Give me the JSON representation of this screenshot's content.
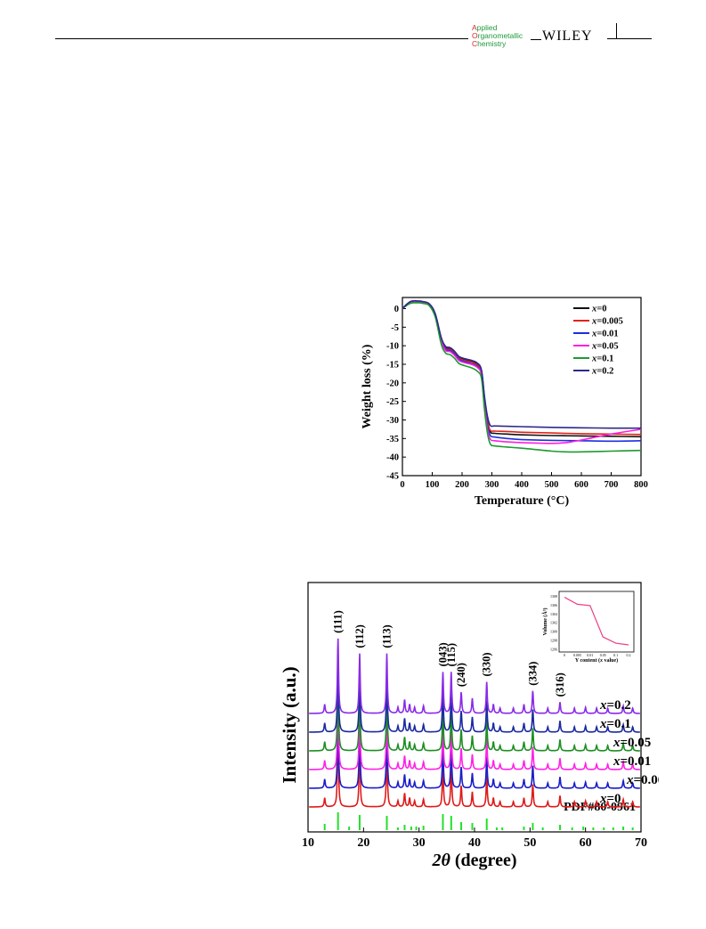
{
  "header": {
    "journal_lines": [
      {
        "cap": "A",
        "rest": "pplied"
      },
      {
        "cap": "O",
        "rest": "rganometallic"
      },
      {
        "cap": "C",
        "rest": "hemistry"
      }
    ],
    "publisher": "WILEY",
    "colors": {
      "journal_cap": "#d9262a",
      "journal_text": "#1f9a3a"
    }
  },
  "chart_data": [
    {
      "type": "line",
      "xlabel": "Temperature (°C)",
      "ylabel": "Weight loss (%)",
      "xlim": [
        0,
        800
      ],
      "ylim": [
        -45,
        3
      ],
      "xticks": [
        0,
        100,
        200,
        300,
        400,
        500,
        600,
        700,
        800
      ],
      "yticks": [
        0,
        -5,
        -10,
        -15,
        -20,
        -25,
        -30,
        -35,
        -40,
        -45
      ],
      "grid": false,
      "legend_position": "top-right",
      "series": [
        {
          "name": "x=0",
          "prefix": "x",
          "value": "=0",
          "color": "#111111",
          "x": [
            0,
            15,
            30,
            50,
            70,
            90,
            110,
            130,
            145,
            160,
            175,
            190,
            210,
            230,
            250,
            265,
            275,
            285,
            295,
            310,
            350,
            400,
            500,
            600,
            700,
            800
          ],
          "y": [
            0,
            1.2,
            1.9,
            2.0,
            1.8,
            1.2,
            -1.5,
            -8,
            -10.5,
            -10.8,
            -11.8,
            -13.2,
            -13.8,
            -14.2,
            -15,
            -17,
            -24,
            -30,
            -33.2,
            -33.6,
            -33.8,
            -34.0,
            -34.2,
            -34.3,
            -34.4,
            -34.5
          ]
        },
        {
          "name": "x=0.005",
          "prefix": "x",
          "value": "=0.005",
          "color": "#e0231c",
          "x": [
            0,
            15,
            30,
            50,
            70,
            90,
            110,
            130,
            145,
            160,
            175,
            190,
            210,
            230,
            250,
            265,
            275,
            285,
            295,
            310,
            350,
            400,
            500,
            600,
            700,
            800
          ],
          "y": [
            0,
            1.1,
            1.8,
            1.9,
            1.7,
            1.1,
            -1.6,
            -8.2,
            -10.7,
            -11,
            -12,
            -13.4,
            -14,
            -14.4,
            -15.2,
            -17.2,
            -24.5,
            -30.5,
            -32.8,
            -33.0,
            -33.1,
            -33.3,
            -33.5,
            -33.7,
            -33.8,
            -33.9
          ]
        },
        {
          "name": "x=0.01",
          "prefix": "x",
          "value": "=0.01",
          "color": "#1d2fe0",
          "x": [
            0,
            15,
            30,
            50,
            70,
            90,
            110,
            130,
            145,
            160,
            175,
            190,
            210,
            230,
            250,
            265,
            275,
            285,
            295,
            310,
            350,
            400,
            500,
            600,
            700,
            800
          ],
          "y": [
            0,
            1.0,
            1.7,
            1.8,
            1.6,
            1.0,
            -1.8,
            -8.5,
            -11,
            -11.3,
            -12.3,
            -13.7,
            -14.3,
            -14.8,
            -15.6,
            -17.6,
            -25,
            -31.5,
            -34.2,
            -34.6,
            -35,
            -35.3,
            -35.5,
            -35.6,
            -35.7,
            -35.6
          ]
        },
        {
          "name": "x=0.05",
          "prefix": "x",
          "value": "=0.05",
          "color": "#ff1fe0",
          "x": [
            0,
            15,
            30,
            50,
            70,
            90,
            110,
            130,
            145,
            160,
            175,
            190,
            210,
            230,
            250,
            265,
            275,
            285,
            295,
            310,
            350,
            400,
            500,
            550,
            600,
            700,
            800
          ],
          "y": [
            0,
            1.0,
            1.6,
            1.7,
            1.5,
            0.9,
            -2,
            -8.7,
            -11.3,
            -11.6,
            -12.6,
            -14,
            -14.6,
            -15,
            -15.8,
            -17.8,
            -25.5,
            -32.5,
            -35.2,
            -35.6,
            -35.9,
            -36.1,
            -36.3,
            -36.1,
            -35.4,
            -33.8,
            -32.5
          ]
        },
        {
          "name": "x=0.1",
          "prefix": "x",
          "value": "=0.1",
          "color": "#1f9a2f",
          "x": [
            0,
            15,
            30,
            50,
            70,
            90,
            110,
            130,
            145,
            160,
            175,
            190,
            210,
            230,
            250,
            265,
            275,
            285,
            295,
            310,
            350,
            400,
            500,
            550,
            600,
            700,
            800
          ],
          "y": [
            0,
            0.9,
            1.5,
            1.6,
            1.4,
            0.8,
            -2.2,
            -9.5,
            -12,
            -12.4,
            -13.4,
            -14.8,
            -15.4,
            -15.9,
            -16.8,
            -18.8,
            -27,
            -33.5,
            -36.5,
            -37,
            -37.3,
            -37.6,
            -38.4,
            -38.6,
            -38.6,
            -38.4,
            -38.2
          ]
        },
        {
          "name": "x=0.2",
          "prefix": "x",
          "value": "=0.2",
          "color": "#2b2a8c",
          "x": [
            0,
            15,
            30,
            50,
            70,
            90,
            110,
            130,
            145,
            160,
            175,
            190,
            210,
            230,
            250,
            265,
            275,
            285,
            295,
            310,
            350,
            400,
            500,
            600,
            700,
            800
          ],
          "y": [
            0,
            1.2,
            2.0,
            2.1,
            1.9,
            1.3,
            -1.3,
            -7.8,
            -10.2,
            -10.5,
            -11.5,
            -12.9,
            -13.5,
            -13.9,
            -14.6,
            -16.5,
            -23.5,
            -29,
            -31.5,
            -31.6,
            -31.7,
            -31.8,
            -32.0,
            -32.1,
            -32.2,
            -32.2
          ]
        }
      ]
    },
    {
      "type": "line",
      "xlabel_prefix": "2θ",
      "xlabel_suffix": " (degree)",
      "ylabel": "Intensity (a.u.)",
      "xlim": [
        10,
        70
      ],
      "xticks": [
        10,
        20,
        30,
        40,
        50,
        60,
        70
      ],
      "grid": false,
      "peak_labels": [
        {
          "label": "(111)",
          "x": 15.4
        },
        {
          "label": "(112)",
          "x": 19.3
        },
        {
          "label": "(113)",
          "x": 24.2
        },
        {
          "label": "(043)",
          "x": 34.3
        },
        {
          "label": "(115)",
          "x": 35.8
        },
        {
          "label": "(240)",
          "x": 37.6
        },
        {
          "label": "(330)",
          "x": 42.2
        },
        {
          "label": "(334)",
          "x": 50.5
        },
        {
          "label": "(316)",
          "x": 55.4
        }
      ],
      "reference": {
        "name": "PDF#80-0961",
        "color": "#22e02a",
        "x": [
          13.0,
          15.4,
          17.4,
          19.3,
          24.2,
          26.2,
          27.4,
          28.6,
          29.5,
          30.8,
          34.3,
          35.8,
          37.6,
          39.6,
          42.2,
          44.0,
          45.0,
          48.9,
          50.5,
          52.3,
          55.4,
          57.6,
          59.6,
          61.4,
          63.3,
          65.0,
          66.8,
          68.5
        ],
        "y": [
          0.35,
          1.0,
          0.2,
          0.85,
          0.8,
          0.15,
          0.3,
          0.2,
          0.2,
          0.25,
          0.9,
          0.8,
          0.45,
          0.4,
          0.65,
          0.15,
          0.15,
          0.2,
          0.4,
          0.15,
          0.3,
          0.15,
          0.2,
          0.15,
          0.15,
          0.15,
          0.2,
          0.15
        ]
      },
      "peaks": {
        "x": [
          13.0,
          15.4,
          19.3,
          24.2,
          26.2,
          27.4,
          28.3,
          29.2,
          30.8,
          34.3,
          35.8,
          37.6,
          39.6,
          42.2,
          43.4,
          44.6,
          47.0,
          48.9,
          50.5,
          53.2,
          55.4,
          58.0,
          60.0,
          62.0,
          64.0,
          66.8,
          68.5
        ],
        "y": [
          0.12,
          1.0,
          0.8,
          0.8,
          0.08,
          0.18,
          0.12,
          0.08,
          0.1,
          0.55,
          0.55,
          0.28,
          0.2,
          0.42,
          0.12,
          0.07,
          0.07,
          0.12,
          0.3,
          0.07,
          0.15,
          0.07,
          0.08,
          0.07,
          0.07,
          0.1,
          0.07
        ]
      },
      "series": [
        {
          "name": "x=0",
          "prefix": "x",
          "value": "=0",
          "color": "#e01a1a"
        },
        {
          "name": "x=0.005",
          "prefix": "x",
          "value": "=0.005",
          "color": "#1b1ec8"
        },
        {
          "name": "x=0.01",
          "prefix": "x",
          "value": "=0.01",
          "color": "#ff22e6"
        },
        {
          "name": "x=0.05",
          "prefix": "x",
          "value": "=0.05",
          "color": "#1d8f22"
        },
        {
          "name": "x=0.1",
          "prefix": "x",
          "value": "=0.1",
          "color": "#1a2aa0"
        },
        {
          "name": "x=0.2",
          "prefix": "x",
          "value": "=0.2",
          "color": "#8a2be8"
        }
      ],
      "inset": {
        "type": "line",
        "xlabel_prefix": "Y content (",
        "xlabel_var": "x",
        "xlabel_suffix": " value)",
        "ylabel": "Volume (Å³)",
        "color": "#ee3b83",
        "categories": [
          "0",
          "0.005",
          "0.01",
          "0.05",
          "0.1",
          "0.2"
        ],
        "yticks": [
          1308,
          1306,
          1304,
          1302,
          1300,
          1298,
          1296
        ],
        "ylim": [
          1296,
          1308.5
        ],
        "values": [
          1307.8,
          1306.2,
          1305.9,
          1298.8,
          1297.4,
          1297.0
        ]
      }
    }
  ]
}
